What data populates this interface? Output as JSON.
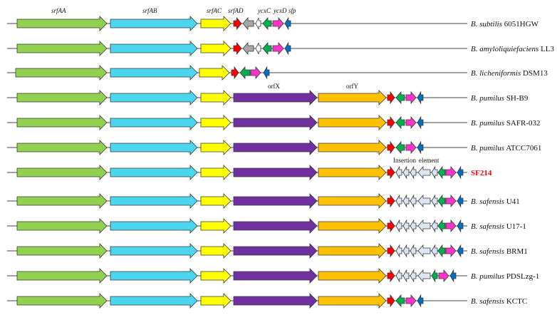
{
  "gene_labels": {
    "srfAA": "srfAA",
    "srfAB": "srfAB",
    "srfAC": "srfAC",
    "srfAD": "srfAD",
    "ycxC": "ycxC",
    "ycxD": "ycxD",
    "sfp": "sfp",
    "orfX": "orfX",
    "orfY": "orfY",
    "insertion": "Insertion",
    "element": "element"
  },
  "colors": {
    "srfAA": "#92d050",
    "srfAB": "#4bd6ee",
    "srfAC": "#ffff00",
    "srfAD": "#ff0000",
    "ycxA": "#a6a6a6",
    "ycxB": "#ffffff",
    "ycxC": "#00b050",
    "ycxD": "#ff33cc",
    "sfp": "#0070c0",
    "orfX": "#7030a0",
    "orfY": "#ffc000",
    "insertion": "#dce6f2",
    "highlight": "#ff0000"
  },
  "strains": [
    {
      "genus": "B. subtilis",
      "strain": "6051HGW",
      "layout": "subtilis"
    },
    {
      "genus": "B. amyloliquiefaciens",
      "strain": "LL3",
      "layout": "subtilis"
    },
    {
      "genus": "B. licheniformis",
      "strain": "DSM13",
      "layout": "licheniformis"
    },
    {
      "genus": "B. pumilus",
      "strain": "SH-B9",
      "layout": "pumilus"
    },
    {
      "genus": "B. pumilus",
      "strain": "SAFR-032",
      "layout": "pumilus"
    },
    {
      "genus": "B. pumilus",
      "strain": "ATCC7061",
      "layout": "pumilus"
    },
    {
      "genus": "",
      "strain": "SF214",
      "layout": "insertion6",
      "highlight": true
    },
    {
      "genus": "B. safensis",
      "strain": "U41",
      "layout": "insertion6"
    },
    {
      "genus": "B. safensis",
      "strain": "U17-1",
      "layout": "insertion6"
    },
    {
      "genus": "B. safensis",
      "strain": "BRM1",
      "layout": "insertion6"
    },
    {
      "genus": "B. pumilus",
      "strain": "PDSLzg-1",
      "layout": "insertion5"
    },
    {
      "genus": "B. safensis",
      "strain": "KCTC",
      "layout": "pumilus"
    }
  ]
}
